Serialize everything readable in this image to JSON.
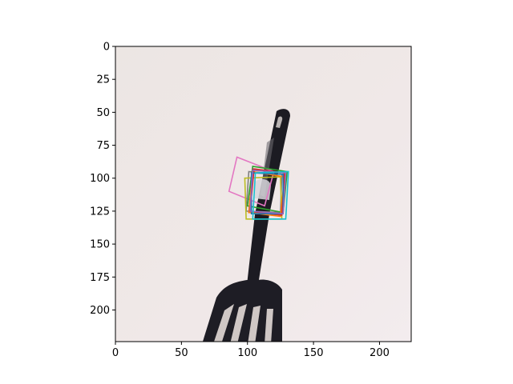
{
  "chart_data": {
    "type": "image_with_boxes",
    "title": "",
    "xlabel": "",
    "ylabel": "",
    "xlim": [
      0,
      224
    ],
    "ylim": [
      224,
      0
    ],
    "x_ticks": [
      0,
      50,
      100,
      150,
      200
    ],
    "y_ticks": [
      0,
      25,
      50,
      75,
      100,
      125,
      150,
      175,
      200
    ],
    "grid": false,
    "legend": "none",
    "image_subject": "black slotted spatula handle on light background",
    "boxes": [
      {
        "color": "#e377c2",
        "corners": [
          [
            92,
            84
          ],
          [
            120,
            95
          ],
          [
            113,
            121
          ],
          [
            86,
            110
          ]
        ]
      },
      {
        "color": "#7f7f7f",
        "corners": [
          [
            101,
            95
          ],
          [
            126,
            97
          ],
          [
            125,
            126
          ],
          [
            99,
            125
          ]
        ]
      },
      {
        "color": "#bcbd22",
        "corners": [
          [
            98,
            100
          ],
          [
            125,
            99
          ],
          [
            126,
            131
          ],
          [
            99,
            131
          ]
        ]
      },
      {
        "color": "#2ca02c",
        "corners": [
          [
            104,
            91
          ],
          [
            130,
            95
          ],
          [
            127,
            126
          ],
          [
            100,
            121
          ]
        ]
      },
      {
        "color": "#8c564b",
        "corners": [
          [
            104,
            93
          ],
          [
            128,
            96
          ],
          [
            126,
            128
          ],
          [
            101,
            126
          ]
        ]
      },
      {
        "color": "#ff7f0e",
        "corners": [
          [
            104,
            95
          ],
          [
            128,
            99
          ],
          [
            125,
            129
          ],
          [
            101,
            126
          ]
        ]
      },
      {
        "color": "#d62728",
        "corners": [
          [
            105,
            93
          ],
          [
            128,
            96
          ],
          [
            126,
            128
          ],
          [
            102,
            125
          ]
        ]
      },
      {
        "color": "#1f77b4",
        "corners": [
          [
            103,
            96
          ],
          [
            127,
            97
          ],
          [
            127,
            127
          ],
          [
            103,
            127
          ]
        ]
      },
      {
        "color": "#9467bd",
        "corners": [
          [
            104,
            94
          ],
          [
            129,
            96
          ],
          [
            127,
            127
          ],
          [
            102,
            125
          ]
        ]
      },
      {
        "color": "#17becf",
        "corners": [
          [
            106,
            96
          ],
          [
            131,
            95
          ],
          [
            129,
            131
          ],
          [
            104,
            131
          ]
        ]
      }
    ]
  }
}
